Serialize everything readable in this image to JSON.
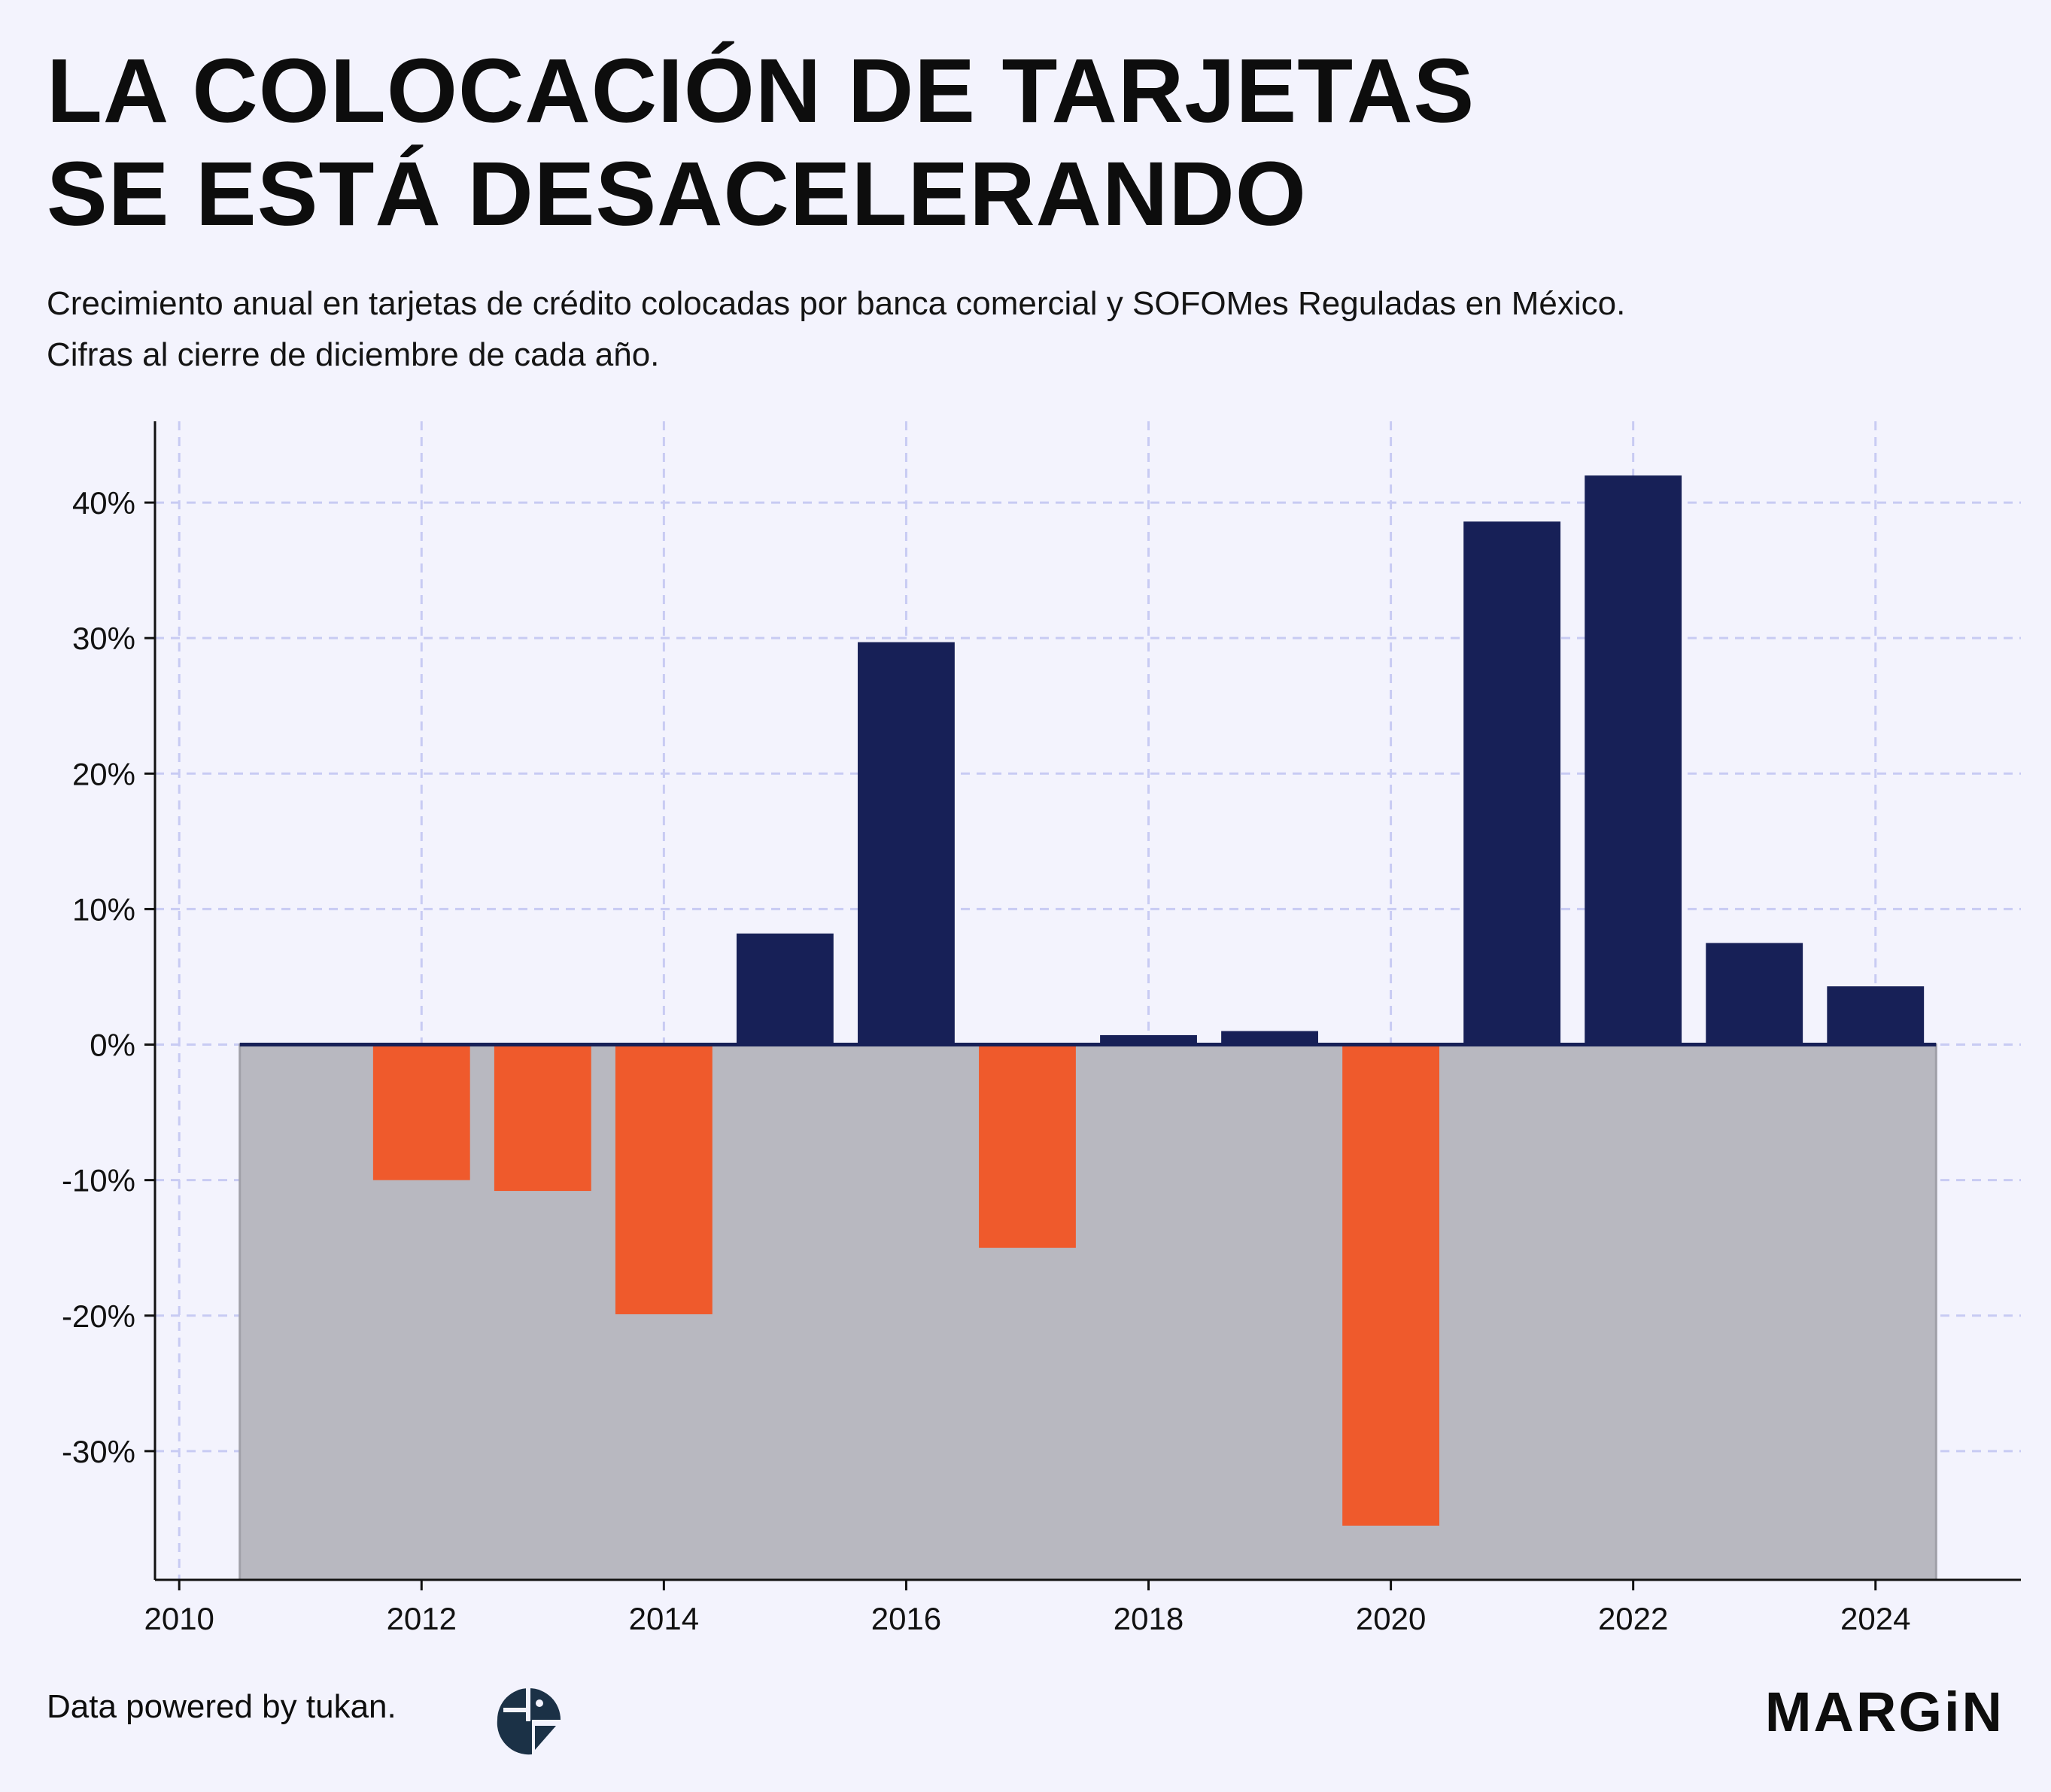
{
  "header": {
    "title_line1": "LA COLOCACIÓN DE TARJETAS",
    "title_line2": "SE ESTÁ DESACELERANDO",
    "subtitle_line1": "Crecimiento anual en tarjetas de crédito colocadas por banca comercial y SOFOMes Reguladas en México.",
    "subtitle_line2": "Cifras al cierre de diciembre de cada año."
  },
  "chart_data": {
    "type": "bar",
    "title": "LA COLOCACIÓN DE TARJETAS SE ESTÁ DESACELERANDO",
    "subtitle": "Crecimiento anual en tarjetas de crédito colocadas por banca comercial y SOFOMes Reguladas en México. Cifras al cierre de diciembre de cada año.",
    "xlabel": "",
    "ylabel": "",
    "x": [
      2011,
      2012,
      2013,
      2014,
      2015,
      2016,
      2017,
      2018,
      2019,
      2020,
      2021,
      2022,
      2023,
      2024
    ],
    "values": [
      0.0,
      -10.0,
      -10.8,
      -19.9,
      8.2,
      29.7,
      -15.0,
      0.7,
      1.0,
      -35.5,
      38.6,
      42.0,
      7.5,
      4.3
    ],
    "xlim": [
      2009.8,
      2025.2
    ],
    "ylim": [
      -39.5,
      46
    ],
    "xticks": [
      2010,
      2012,
      2014,
      2016,
      2018,
      2020,
      2022,
      2024
    ],
    "xtick_labels": [
      "2010",
      "2012",
      "2014",
      "2016",
      "2018",
      "2020",
      "2022",
      "2024"
    ],
    "yticks": [
      -30,
      -20,
      -10,
      0,
      10,
      20,
      30,
      40
    ],
    "ytick_labels": [
      "-30%",
      "-20%",
      "-10%",
      "0%",
      "10%",
      "20%",
      "30%",
      "40%"
    ],
    "shaded_region": {
      "x_from": 2010.5,
      "x_to": 2024.5,
      "y_from": -39.5,
      "y_to": 0
    },
    "grid": true,
    "colors": {
      "positive": "#172057",
      "negative": "#ef5a2c",
      "shade": "#b8b8c0",
      "grid": "#c8cbf3",
      "axis": "#111111",
      "zero_line": "#172057"
    }
  },
  "footer": {
    "credit": "Data powered by tukan.",
    "tukan_logo_icon": "tukan-logo-icon",
    "brand": "MARGiN"
  }
}
